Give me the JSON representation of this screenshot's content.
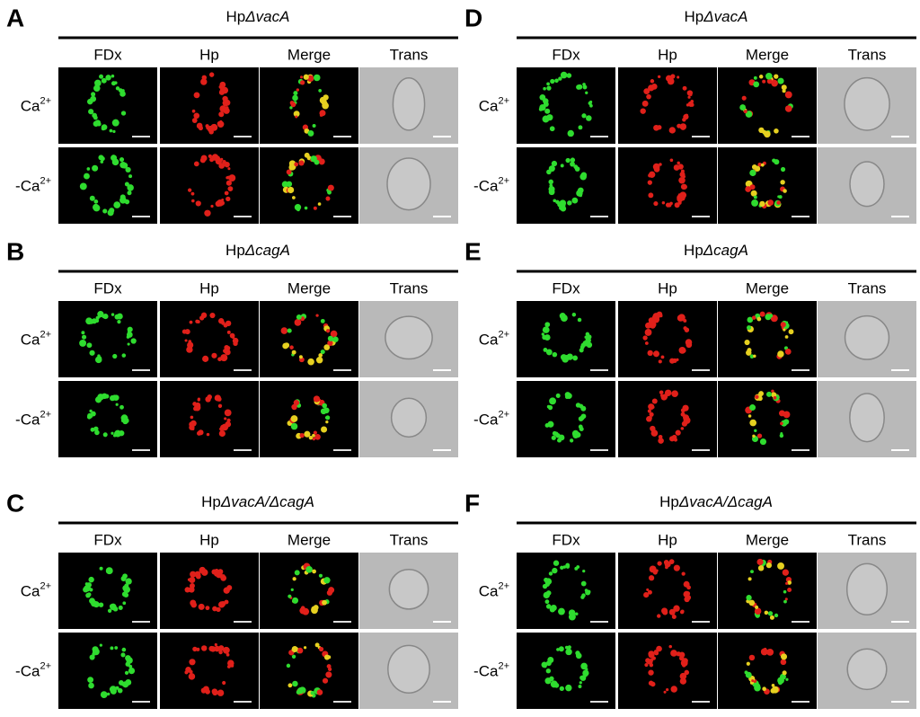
{
  "panels": [
    {
      "letter": "A",
      "title": {
        "prefix": "Hp",
        "strain": "ΔvacA"
      },
      "columns": [
        "FDx",
        "Hp",
        "Merge",
        "Trans"
      ],
      "rows": [
        {
          "label": "Ca",
          "sup": "2+"
        },
        {
          "label": "-Ca",
          "sup": "2+"
        }
      ]
    },
    {
      "letter": "B",
      "title": {
        "prefix": "Hp",
        "strain": "ΔcagA"
      },
      "columns": [
        "FDx",
        "Hp",
        "Merge",
        "Trans"
      ],
      "rows": [
        {
          "label": "Ca",
          "sup": "2+"
        },
        {
          "label": "-Ca",
          "sup": "2+"
        }
      ]
    },
    {
      "letter": "C",
      "title": {
        "prefix": "Hp",
        "strain": "ΔvacA/ΔcagA"
      },
      "columns": [
        "FDx",
        "Hp",
        "Merge",
        "Trans"
      ],
      "rows": [
        {
          "label": "Ca",
          "sup": "2+"
        },
        {
          "label": "-Ca",
          "sup": "2+"
        }
      ]
    },
    {
      "letter": "D",
      "title": {
        "prefix": "Hp",
        "strain": "ΔvacA"
      },
      "columns": [
        "FDx",
        "Hp",
        "Merge",
        "Trans"
      ],
      "rows": [
        {
          "label": "Ca",
          "sup": "2+"
        },
        {
          "label": "-Ca",
          "sup": "2+"
        }
      ]
    },
    {
      "letter": "E",
      "title": {
        "prefix": "Hp",
        "strain": "ΔcagA"
      },
      "columns": [
        "FDx",
        "Hp",
        "Merge",
        "Trans"
      ],
      "rows": [
        {
          "label": "Ca",
          "sup": "2+"
        },
        {
          "label": "-Ca",
          "sup": "2+"
        }
      ]
    },
    {
      "letter": "F",
      "title": {
        "prefix": "Hp",
        "strain": "ΔvacA/ΔcagA"
      },
      "columns": [
        "FDx",
        "Hp",
        "Merge",
        "Trans"
      ],
      "rows": [
        {
          "label": "Ca",
          "sup": "2+"
        },
        {
          "label": "-Ca",
          "sup": "2+"
        }
      ]
    }
  ]
}
